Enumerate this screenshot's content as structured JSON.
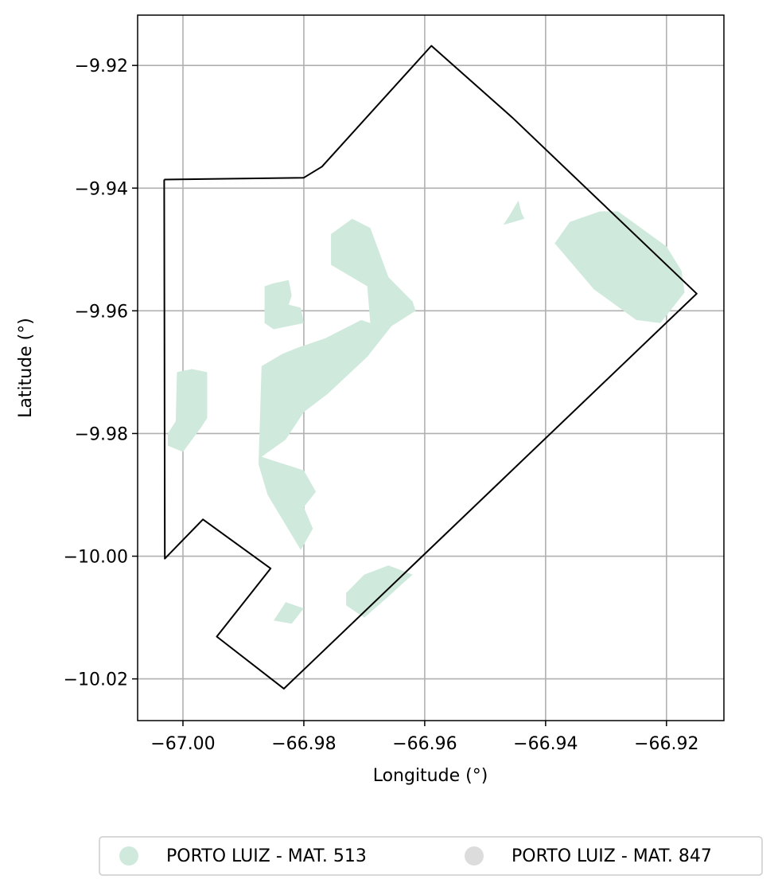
{
  "chart_data": {
    "type": "map",
    "xlabel": "Longitude (°)",
    "ylabel": "Latitude (°)",
    "xlim": [
      -67.0075,
      -66.9105
    ],
    "ylim": [
      -10.0268,
      -9.9118
    ],
    "grid": true,
    "x_ticks": [
      {
        "value": -67.0,
        "label": "−67.00"
      },
      {
        "value": -66.98,
        "label": "−66.98"
      },
      {
        "value": -66.96,
        "label": "−66.96"
      },
      {
        "value": -66.94,
        "label": "−66.94"
      },
      {
        "value": -66.92,
        "label": "−66.92"
      }
    ],
    "y_ticks": [
      {
        "value": -9.92,
        "label": "−9.92"
      },
      {
        "value": -9.94,
        "label": "−9.94"
      },
      {
        "value": -9.96,
        "label": "−9.96"
      },
      {
        "value": -9.98,
        "label": "−9.98"
      },
      {
        "value": -10.0,
        "label": "−10.00"
      },
      {
        "value": -10.02,
        "label": "−10.02"
      }
    ],
    "boundary": {
      "stroke": "#000000",
      "points": [
        [
          -67.0031,
          -9.9386
        ],
        [
          -66.98,
          -9.9383
        ],
        [
          -66.977,
          -9.9365
        ],
        [
          -66.9589,
          -9.9168
        ],
        [
          -66.9455,
          -9.9285
        ],
        [
          -66.915,
          -9.9572
        ],
        [
          -66.9833,
          -10.0216
        ],
        [
          -66.9944,
          -10.0131
        ],
        [
          -66.9855,
          -10.002
        ],
        [
          -66.9967,
          -9.994
        ],
        [
          -67.003,
          -10.0004
        ],
        [
          -67.0031,
          -9.9386
        ]
      ]
    },
    "series": [
      {
        "name": "PORTO LUIZ - MAT. 513",
        "color": "#cfeadc",
        "polygons": [
          [
            [
              -66.9755,
              -9.9475
            ],
            [
              -66.972,
              -9.945
            ],
            [
              -66.969,
              -9.9465
            ],
            [
              -66.966,
              -9.9545
            ],
            [
              -66.962,
              -9.9585
            ],
            [
              -66.9615,
              -9.96
            ],
            [
              -66.9655,
              -9.9625
            ],
            [
              -66.9695,
              -9.9675
            ],
            [
              -66.976,
              -9.9735
            ],
            [
              -66.98,
              -9.9765
            ],
            [
              -66.983,
              -9.981
            ],
            [
              -66.987,
              -9.9838
            ],
            [
              -66.9848,
              -9.9845
            ],
            [
              -66.98,
              -9.986
            ],
            [
              -66.978,
              -9.9895
            ],
            [
              -66.98,
              -9.992
            ],
            [
              -66.9785,
              -9.9955
            ],
            [
              -66.9805,
              -9.999
            ],
            [
              -66.986,
              -9.99
            ],
            [
              -66.9875,
              -9.985
            ],
            [
              -66.987,
              -9.969
            ],
            [
              -66.9835,
              -9.967
            ],
            [
              -66.981,
              -9.966
            ],
            [
              -66.9765,
              -9.9645
            ],
            [
              -66.9705,
              -9.9615
            ],
            [
              -66.969,
              -9.962
            ],
            [
              -66.9695,
              -9.956
            ],
            [
              -66.9755,
              -9.9525
            ]
          ],
          [
            [
              -66.9825,
              -9.955
            ],
            [
              -66.982,
              -9.9575
            ],
            [
              -66.9825,
              -9.959
            ],
            [
              -66.9805,
              -9.9595
            ],
            [
              -66.98,
              -9.962
            ],
            [
              -66.985,
              -9.963
            ],
            [
              -66.9865,
              -9.962
            ],
            [
              -66.9865,
              -9.956
            ],
            [
              -66.985,
              -9.9555
            ]
          ],
          [
            [
              -66.9445,
              -9.942
            ],
            [
              -66.944,
              -9.944
            ],
            [
              -66.9435,
              -9.945
            ],
            [
              -66.947,
              -9.946
            ],
            [
              -66.946,
              -9.9445
            ]
          ],
          [
            [
              -66.928,
              -9.9438
            ],
            [
              -66.92,
              -9.9495
            ],
            [
              -66.9175,
              -9.9535
            ],
            [
              -66.917,
              -9.957
            ],
            [
              -66.921,
              -9.962
            ],
            [
              -66.925,
              -9.9615
            ],
            [
              -66.932,
              -9.9565
            ],
            [
              -66.9385,
              -9.949
            ],
            [
              -66.936,
              -9.9455
            ],
            [
              -66.931,
              -9.9438
            ]
          ],
          [
            [
              -67.0025,
              -9.98
            ],
            [
              -67.0025,
              -9.982
            ],
            [
              -67.0,
              -9.983
            ],
            [
              -66.997,
              -9.979
            ],
            [
              -66.996,
              -9.9775
            ],
            [
              -66.996,
              -9.97
            ],
            [
              -66.9985,
              -9.9695
            ],
            [
              -67.001,
              -9.97
            ],
            [
              -67.0012,
              -9.978
            ]
          ],
          [
            [
              -66.97,
              -10.01
            ],
            [
              -66.9665,
              -10.007
            ],
            [
              -66.962,
              -10.003
            ],
            [
              -66.966,
              -10.0015
            ],
            [
              -66.97,
              -10.003
            ],
            [
              -66.973,
              -10.006
            ],
            [
              -66.973,
              -10.008
            ]
          ],
          [
            [
              -66.983,
              -10.0075
            ],
            [
              -66.98,
              -10.0085
            ],
            [
              -66.982,
              -10.011
            ],
            [
              -66.985,
              -10.0105
            ]
          ]
        ]
      },
      {
        "name": "PORTO LUIZ - MAT. 847",
        "color": "#dcdcdc",
        "polygons": []
      }
    ],
    "legend": "bottom-center"
  }
}
